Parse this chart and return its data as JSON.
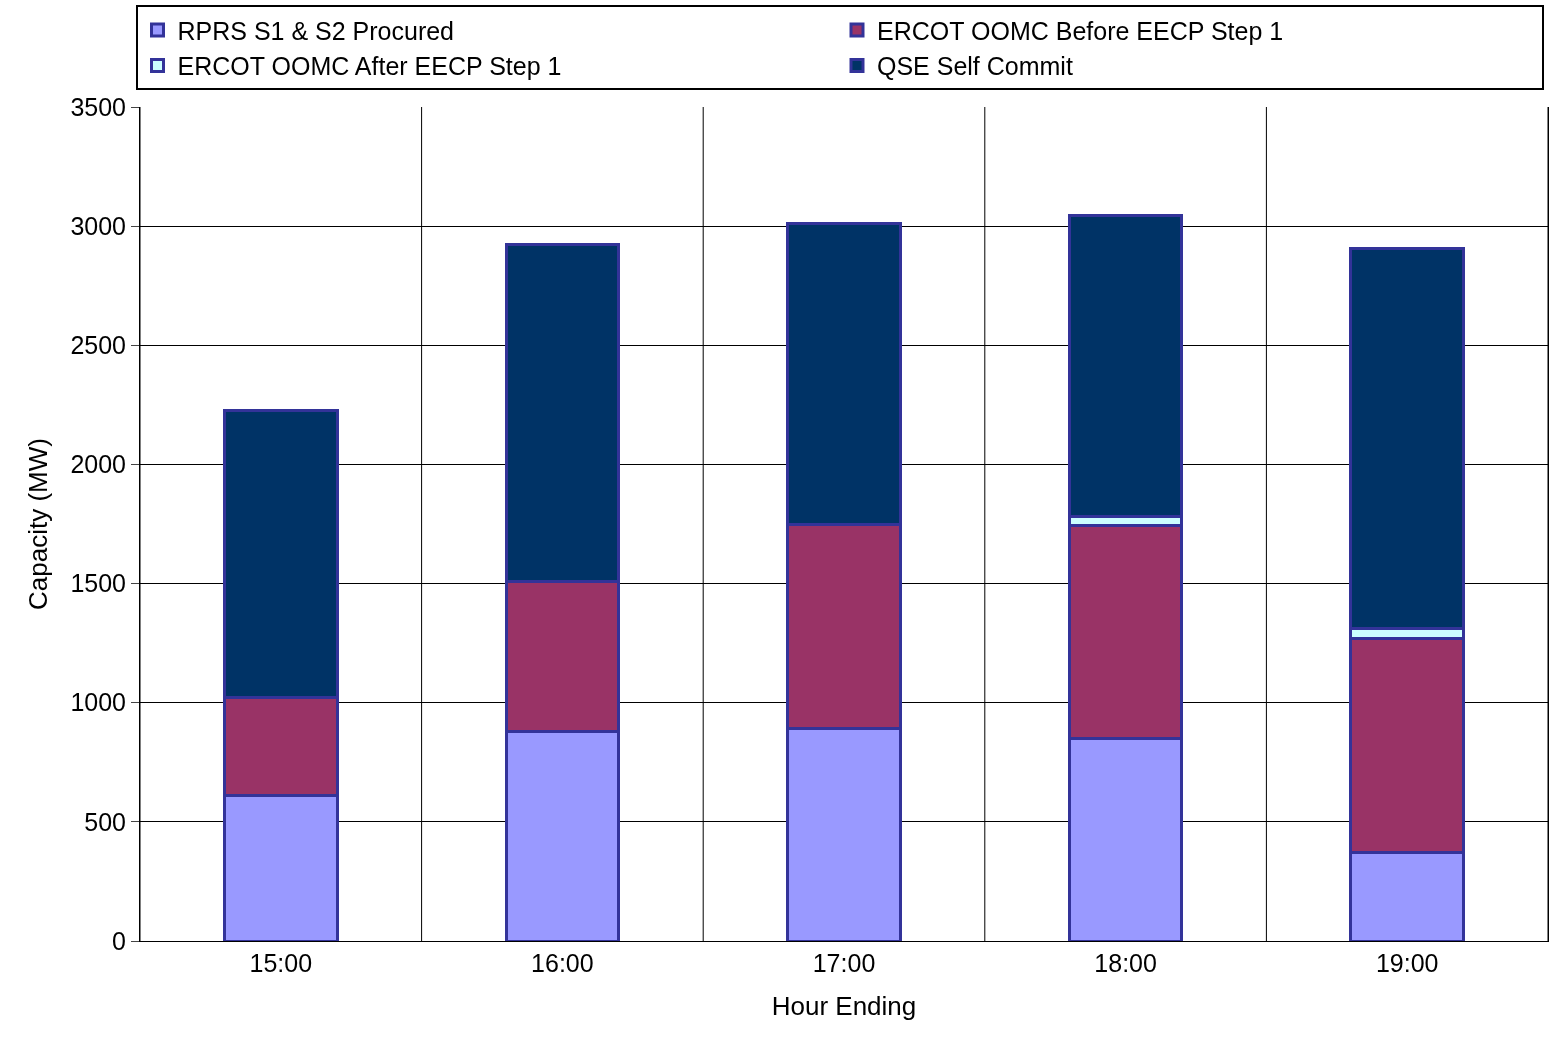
{
  "chart_data": {
    "type": "bar",
    "stacked": true,
    "xlabel": "Hour Ending",
    "ylabel": "Capacity (MW)",
    "categories": [
      "15:00",
      "16:00",
      "17:00",
      "18:00",
      "19:00"
    ],
    "series": [
      {
        "name": "RPRS S1 & S2 Procured",
        "color": "#9999ff",
        "values": [
          610,
          880,
          890,
          850,
          370
        ]
      },
      {
        "name": "ERCOT OOMC Before EECP Step 1",
        "color": "#993366",
        "values": [
          410,
          630,
          860,
          895,
          900
        ]
      },
      {
        "name": "ERCOT OOMC After EECP Step 1",
        "color": "#ccffff",
        "values": [
          0,
          0,
          0,
          35,
          40
        ]
      },
      {
        "name": "QSE Self Commit",
        "color": "#003366",
        "values": [
          1205,
          1415,
          1260,
          1265,
          1595
        ]
      }
    ],
    "ylim": [
      0,
      3500
    ],
    "yticks": [
      0,
      500,
      1000,
      1500,
      2000,
      2500,
      3000,
      3500
    ],
    "grid": true,
    "legend": "top"
  }
}
